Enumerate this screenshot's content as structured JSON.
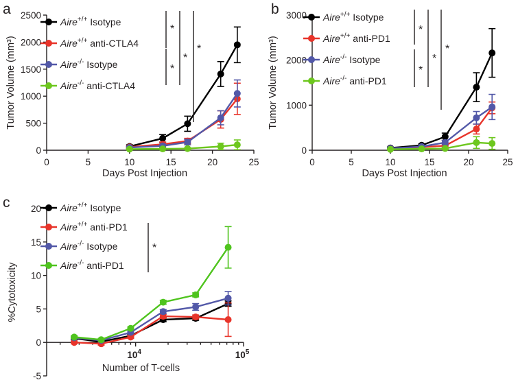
{
  "panels": [
    {
      "letter": "a",
      "chart_data": {
        "type": "line",
        "ylabel": "Tumor Volume (mm³)",
        "xlabel": "Days Post Injection",
        "xlim": [
          0,
          25
        ],
        "ylim": [
          0,
          2500
        ],
        "xticks": [
          0,
          5,
          10,
          15,
          20,
          25
        ],
        "yticks": [
          0,
          500,
          1000,
          1500,
          2000,
          2500
        ],
        "x": [
          10,
          14,
          17,
          21,
          23
        ],
        "series": [
          {
            "name": "Aire+/+ Isotype",
            "base": "Aire",
            "sup": "+/+",
            "rest": " Isotype",
            "color": "#000000",
            "values": [
              70,
              220,
              490,
              1410,
              1950
            ],
            "err": [
              30,
              70,
              140,
              230,
              330
            ]
          },
          {
            "name": "Aire+/+ anti-CTLA4",
            "base": "Aire",
            "sup": "+/+",
            "rest": " anti-CTLA4",
            "color": "#e8342a",
            "values": [
              60,
              110,
              170,
              570,
              950
            ],
            "err": [
              20,
              40,
              50,
              160,
              290
            ]
          },
          {
            "name": "Aire-/- Isotype",
            "base": "Aire",
            "sup": "-/-",
            "rest": " Isotype",
            "color": "#5258a8",
            "values": [
              50,
              80,
              150,
              600,
              1050
            ],
            "err": [
              20,
              30,
              50,
              130,
              250
            ]
          },
          {
            "name": "Aire-/- anti-CTLA4",
            "base": "Aire",
            "sup": "-/-",
            "rest": " anti-CTLA4",
            "color": "#6dc71e",
            "values": [
              20,
              25,
              30,
              70,
              100
            ],
            "err": [
              10,
              10,
              15,
              60,
              90
            ]
          }
        ],
        "significance": [
          "*",
          "*",
          "*",
          "*"
        ]
      }
    },
    {
      "letter": "b",
      "chart_data": {
        "type": "line",
        "ylabel": "Tumor Volume (mm³)",
        "xlabel": "Days Post Injection",
        "xlim": [
          0,
          25
        ],
        "ylim": [
          0,
          3000
        ],
        "xticks": [
          0,
          5,
          10,
          15,
          20,
          25
        ],
        "yticks": [
          0,
          1000,
          2000,
          3000
        ],
        "x": [
          10,
          14,
          17,
          21,
          23
        ],
        "series": [
          {
            "name": "Aire+/+ Isotype",
            "base": "Aire",
            "sup": "+/+",
            "rest": " Isotype",
            "color": "#000000",
            "values": [
              50,
              110,
              300,
              1400,
              2160
            ],
            "err": [
              20,
              30,
              80,
              320,
              540
            ]
          },
          {
            "name": "Aire+/+ anti-PD1",
            "base": "Aire",
            "sup": "+/+",
            "rest": " anti-PD1",
            "color": "#e8342a",
            "values": [
              40,
              70,
              100,
              470,
              940
            ],
            "err": [
              15,
              20,
              30,
              110,
              130
            ]
          },
          {
            "name": "Aire-/- Isotype",
            "base": "Aire",
            "sup": "-/-",
            "rest": " Isotype",
            "color": "#5258a8",
            "values": [
              40,
              80,
              170,
              720,
              960
            ],
            "err": [
              15,
              20,
              50,
              140,
              280
            ]
          },
          {
            "name": "Aire-/- anti-PD1",
            "base": "Aire",
            "sup": "-/-",
            "rest": " anti-PD1",
            "color": "#6dc71e",
            "values": [
              20,
              30,
              40,
              170,
              150
            ],
            "err": [
              10,
              10,
              15,
              130,
              130
            ]
          }
        ],
        "significance": [
          "*",
          "*",
          "*",
          "*"
        ]
      }
    },
    {
      "letter": "c",
      "chart_data": {
        "type": "line",
        "xscale": "log",
        "ylabel": "%Cytotoxicity",
        "xlabel": "Number of T-cells",
        "xlim": [
          1500,
          100000
        ],
        "ylim": [
          -5,
          20
        ],
        "yticks": [
          -5,
          0,
          5,
          10,
          15,
          20
        ],
        "xticks": [
          {
            "value": 10000,
            "base": "10",
            "exp": "4"
          },
          {
            "value": 100000,
            "base": "10",
            "exp": "5"
          }
        ],
        "x": [
          2700,
          4800,
          9000,
          18000,
          36000,
          72000
        ],
        "series": [
          {
            "name": "Aire+/+ Isotype",
            "base": "Aire",
            "sup": "+/+",
            "rest": " Isotype",
            "color": "#000000",
            "values": [
              0.6,
              0.1,
              1.0,
              3.4,
              3.6,
              5.8
            ],
            "err": [
              0.2,
              0.2,
              0.2,
              0.3,
              0.3,
              0.4
            ]
          },
          {
            "name": "Aire+/+ anti-PD1",
            "base": "Aire",
            "sup": "+/+",
            "rest": " anti-PD1",
            "color": "#e8342a",
            "values": [
              0.0,
              -0.2,
              0.8,
              3.9,
              3.8,
              3.4
            ],
            "err": [
              0.2,
              0.2,
              0.2,
              0.3,
              0.3,
              2.5
            ]
          },
          {
            "name": "Aire-/- Isotype",
            "base": "Aire",
            "sup": "-/-",
            "rest": " Isotype",
            "color": "#5258a8",
            "values": [
              0.7,
              0.3,
              1.5,
              4.6,
              5.3,
              6.6
            ],
            "err": [
              0.2,
              0.2,
              0.2,
              0.3,
              0.5,
              1.0
            ]
          },
          {
            "name": "Aire-/- anti-PD1",
            "base": "Aire",
            "sup": "-/-",
            "rest": " anti-PD1",
            "color": "#4fc41e",
            "values": [
              0.8,
              0.4,
              2.1,
              6.0,
              7.1,
              14.2
            ],
            "err": [
              0.2,
              0.2,
              0.2,
              0.3,
              0.3,
              3.1
            ]
          }
        ],
        "significance": [
          "*"
        ]
      }
    }
  ]
}
